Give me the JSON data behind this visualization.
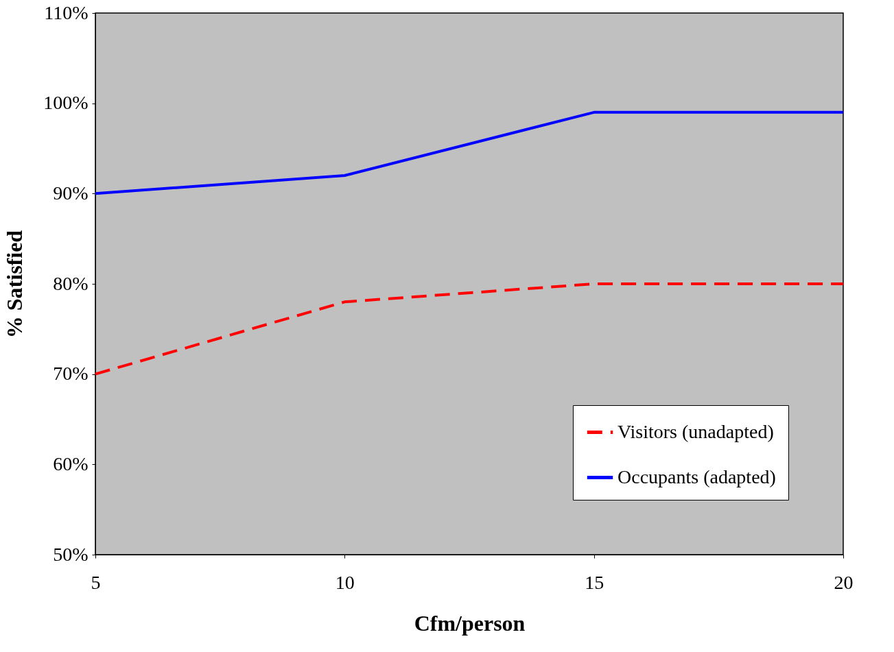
{
  "chart_data": {
    "type": "line",
    "xlabel": "Cfm/person",
    "ylabel": "% Satisfied",
    "x": [
      5,
      10,
      15,
      20
    ],
    "xlim": [
      5,
      20
    ],
    "xticks": [
      5,
      10,
      15,
      20
    ],
    "ylim": [
      50,
      110
    ],
    "yticks": [
      {
        "value": 50,
        "label": "50%"
      },
      {
        "value": 60,
        "label": "60%"
      },
      {
        "value": 70,
        "label": "70%"
      },
      {
        "value": 80,
        "label": "80%"
      },
      {
        "value": 90,
        "label": "90%"
      },
      {
        "value": 100,
        "label": "100%"
      },
      {
        "value": 110,
        "label": "110%"
      }
    ],
    "series": [
      {
        "name": "Visitors (unadapted)",
        "color": "#ff0000",
        "line_style": "dashed",
        "values": [
          70,
          78,
          80,
          80
        ]
      },
      {
        "name": "Occupants (adapted)",
        "color": "#0000ff",
        "line_style": "solid",
        "values": [
          90,
          92,
          99,
          99
        ]
      }
    ],
    "grid": false,
    "legend": "bottom right",
    "marker": "none"
  }
}
